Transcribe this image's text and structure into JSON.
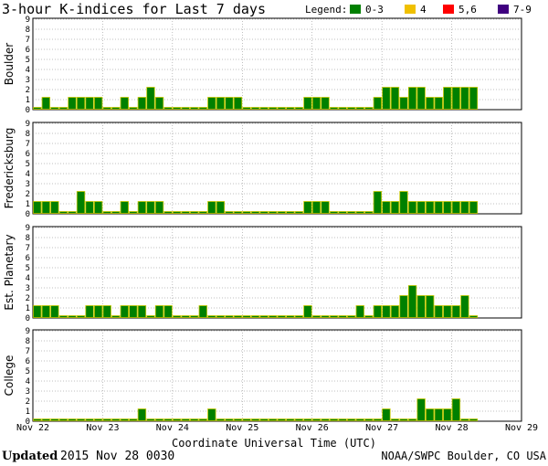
{
  "chart_data": {
    "type": "bar",
    "title": "3-hour K-indices for Last 7 days",
    "legend": {
      "label": "Legend:",
      "placement": "top-right",
      "items": [
        {
          "label": "0-3",
          "color": "#008000"
        },
        {
          "label": "4",
          "color": "#f0c000"
        },
        {
          "label": "5,6",
          "color": "#ff0000"
        },
        {
          "label": "7-9",
          "color": "#400080"
        }
      ]
    },
    "xlabel": "Coordinate Universal Time (UTC)",
    "x_ticks": [
      "Nov 22",
      "Nov 23",
      "Nov 24",
      "Nov 25",
      "Nov 26",
      "Nov 27",
      "Nov 28",
      "Nov 29"
    ],
    "ylim": [
      0,
      9
    ],
    "y_ticks": [
      "0",
      "1",
      "2",
      "3",
      "4",
      "5",
      "6",
      "7",
      "8",
      "9"
    ],
    "grid": true,
    "bar_color": "#008000",
    "bar_outline": "#c8c800",
    "series": [
      {
        "name": "Boulder",
        "values": [
          0,
          1,
          0,
          0,
          1,
          1,
          1,
          1,
          0,
          0,
          1,
          0,
          1,
          2,
          1,
          0,
          0,
          0,
          0,
          0,
          1,
          1,
          1,
          1,
          0,
          0,
          0,
          0,
          0,
          0,
          0,
          1,
          1,
          1,
          0,
          0,
          0,
          0,
          0,
          1,
          2,
          2,
          1,
          2,
          2,
          1,
          1,
          2,
          2,
          2,
          2
        ]
      },
      {
        "name": "Fredericksburg",
        "values": [
          1,
          1,
          1,
          0,
          0,
          2,
          1,
          1,
          0,
          0,
          1,
          0,
          1,
          1,
          1,
          0,
          0,
          0,
          0,
          0,
          1,
          1,
          0,
          0,
          0,
          0,
          0,
          0,
          0,
          0,
          0,
          1,
          1,
          1,
          0,
          0,
          0,
          0,
          0,
          2,
          1,
          1,
          2,
          1,
          1,
          1,
          1,
          1,
          1,
          1,
          1
        ]
      },
      {
        "name": "Est. Planetary",
        "values": [
          1,
          1,
          1,
          0,
          0,
          0,
          1,
          1,
          1,
          0,
          1,
          1,
          1,
          0,
          1,
          1,
          0,
          0,
          0,
          1,
          0,
          0,
          0,
          0,
          0,
          0,
          0,
          0,
          0,
          0,
          0,
          1,
          0,
          0,
          0,
          0,
          0,
          1,
          0,
          1,
          1,
          1,
          2,
          3,
          2,
          2,
          1,
          1,
          1,
          2,
          0
        ]
      },
      {
        "name": "College",
        "values": [
          0,
          0,
          0,
          0,
          0,
          0,
          0,
          0,
          0,
          0,
          0,
          0,
          1,
          0,
          0,
          0,
          0,
          0,
          0,
          0,
          1,
          0,
          0,
          0,
          0,
          0,
          0,
          0,
          0,
          0,
          0,
          0,
          0,
          0,
          0,
          0,
          0,
          0,
          0,
          0,
          1,
          0,
          0,
          0,
          2,
          1,
          1,
          1,
          2,
          0,
          0
        ]
      }
    ]
  },
  "footer": {
    "updated_label": "Updated",
    "updated_value": "2015 Nov 28 0030",
    "credit": "NOAA/SWPC Boulder, CO USA"
  }
}
